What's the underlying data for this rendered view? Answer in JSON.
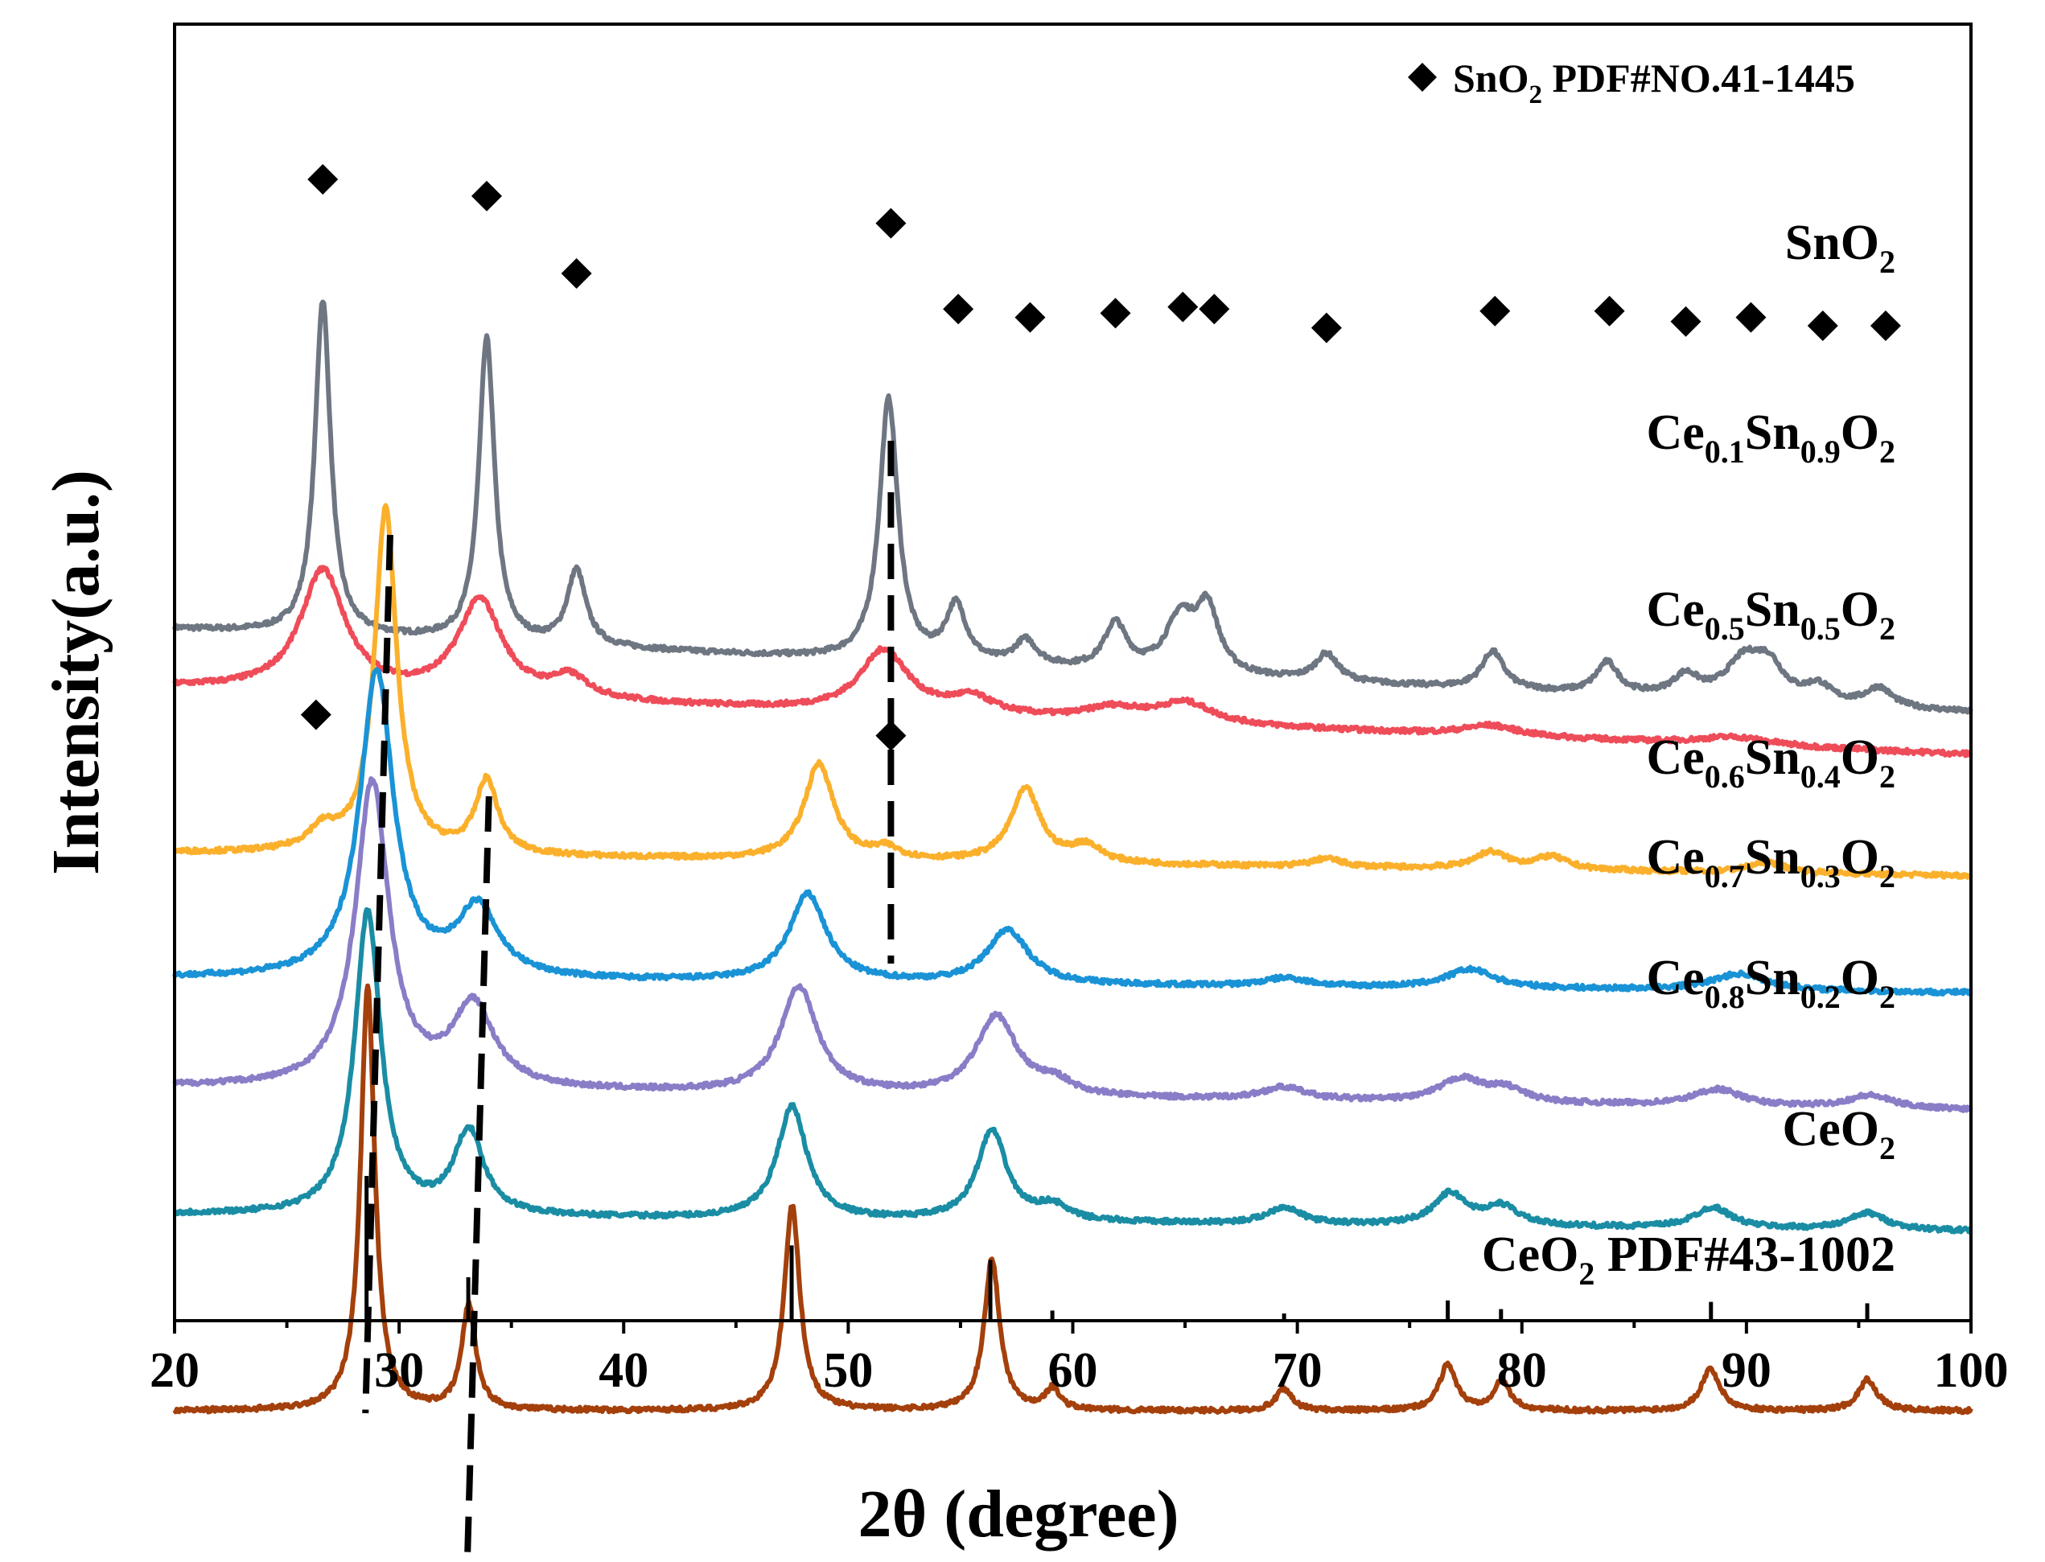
{
  "chart_data": {
    "type": "line",
    "title": "",
    "xlabel": "2θ (degree)",
    "ylabel": "Intensity(a.u.)",
    "xlim": [
      20,
      100
    ],
    "xticks": [
      20,
      30,
      40,
      50,
      60,
      70,
      80,
      90,
      100
    ],
    "grid": false,
    "legend": {
      "position": "top-right",
      "marker": "◆",
      "text_parts": [
        {
          "t": "SnO",
          "s": "normal"
        },
        {
          "t": "2",
          "s": "sub"
        },
        {
          "t": " PDF#NO.41-1445",
          "s": "normal"
        }
      ]
    },
    "series": [
      {
        "name": "SnO2",
        "label_parts": [
          {
            "t": "SnO",
            "s": "normal"
          },
          {
            "t": "2",
            "s": "sub"
          }
        ],
        "color": "#6e7682",
        "baseline": [
          8,
          4
        ],
        "peaks": [
          [
            26.6,
            16,
            0.42
          ],
          [
            33.9,
            14.5,
            0.42
          ],
          [
            37.9,
            3.6,
            0.5
          ],
          [
            51.8,
            12.5,
            0.5
          ],
          [
            54.8,
            2.7,
            0.55
          ],
          [
            57.9,
            1.2,
            0.6
          ],
          [
            61.9,
            2.2,
            0.6
          ],
          [
            64.8,
            2.6,
            0.8
          ],
          [
            66.0,
            3.0,
            0.6
          ],
          [
            71.3,
            1.3,
            0.6
          ],
          [
            78.7,
            1.8,
            0.6
          ],
          [
            83.8,
            1.5,
            0.6
          ],
          [
            87.3,
            1.0,
            0.7
          ],
          [
            89.9,
            1.8,
            1.0
          ],
          [
            91.0,
            1.5,
            0.8
          ],
          [
            93.2,
            0.8,
            0.7
          ],
          [
            95.9,
            0.9,
            0.7
          ]
        ]
      },
      {
        "name": "Ce0.1Sn0.9O2",
        "label_parts": [
          {
            "t": "Ce",
            "s": "normal"
          },
          {
            "t": "0.1",
            "s": "sub"
          },
          {
            "t": "Sn",
            "s": "normal"
          },
          {
            "t": "0.9",
            "s": "sub"
          },
          {
            "t": "O",
            "s": "normal"
          },
          {
            "t": "2",
            "s": "sub"
          }
        ],
        "color": "#ef4c59",
        "baseline": [
          5.2,
          2.0
        ],
        "peaks": [
          [
            26.6,
            5.8,
            1.2
          ],
          [
            33.6,
            4.6,
            1.2
          ],
          [
            37.6,
            1.0,
            1.0
          ],
          [
            51.6,
            3.0,
            1.3
          ],
          [
            55.5,
            0.8,
            1.2
          ],
          [
            61.8,
            0.6,
            1.5
          ],
          [
            65.0,
            1.0,
            1.5
          ],
          [
            78.6,
            0.5,
            1.5
          ],
          [
            89.5,
            0.4,
            2.0
          ]
        ]
      },
      {
        "name": "Ce0.5Sn0.5O2",
        "label_parts": [
          {
            "t": "Ce",
            "s": "normal"
          },
          {
            "t": "0.5",
            "s": "sub"
          },
          {
            "t": "Sn",
            "s": "normal"
          },
          {
            "t": "0.5",
            "s": "sub"
          },
          {
            "t": "O",
            "s": "normal"
          },
          {
            "t": "2",
            "s": "sub"
          }
        ],
        "color": "#fbb02c",
        "baseline": [
          -2.7,
          -3.8
        ],
        "peaks": [
          [
            29.4,
            16.5,
            0.6
          ],
          [
            33.9,
            3.5,
            0.6
          ],
          [
            26.6,
            1.0,
            0.8
          ],
          [
            48.7,
            4.6,
            0.8
          ],
          [
            51.7,
            0.5,
            0.7
          ],
          [
            57.9,
            3.5,
            0.8
          ],
          [
            60.6,
            0.8,
            0.8
          ],
          [
            71.3,
            0.4,
            0.8
          ],
          [
            78.6,
            0.8,
            0.9
          ],
          [
            81.3,
            0.6,
            0.9
          ],
          [
            90.9,
            0.5,
            1.0
          ]
        ]
      },
      {
        "name": "Ce0.6Sn0.4O2",
        "label_parts": [
          {
            "t": "Ce",
            "s": "normal"
          },
          {
            "t": "0.6",
            "s": "sub"
          },
          {
            "t": "Sn",
            "s": "normal"
          },
          {
            "t": "0.4",
            "s": "sub"
          },
          {
            "t": "O",
            "s": "normal"
          },
          {
            "t": "2",
            "s": "sub"
          }
        ],
        "color": "#1a93d6",
        "baseline": [
          -8.7,
          -9.4
        ],
        "peaks": [
          [
            29.0,
            14.7,
            0.9
          ],
          [
            33.5,
            3.3,
            1.1
          ],
          [
            48.2,
            4.2,
            1.0
          ],
          [
            57.1,
            2.6,
            1.1
          ],
          [
            69.5,
            0.4,
            1.2
          ],
          [
            77.7,
            0.9,
            1.3
          ],
          [
            89.7,
            0.8,
            1.5
          ]
        ]
      },
      {
        "name": "Ce0.7Sn0.3O2",
        "label_parts": [
          {
            "t": "Ce",
            "s": "normal"
          },
          {
            "t": "0.7",
            "s": "sub"
          },
          {
            "t": "Sn",
            "s": "normal"
          },
          {
            "t": "0.3",
            "s": "sub"
          },
          {
            "t": "O",
            "s": "normal"
          },
          {
            "t": "2",
            "s": "sub"
          }
        ],
        "color": "#8a7dc7",
        "baseline": [
          -13.9,
          -15.0
        ],
        "peaks": [
          [
            28.8,
            14.6,
            0.9
          ],
          [
            33.3,
            3.9,
            1.1
          ],
          [
            47.8,
            5.1,
            1.0
          ],
          [
            56.6,
            3.8,
            1.1
          ],
          [
            59.2,
            0.6,
            0.9
          ],
          [
            69.4,
            0.6,
            1.2
          ],
          [
            77.3,
            1.1,
            1.2
          ],
          [
            79.3,
            0.6,
            1.0
          ],
          [
            88.7,
            0.8,
            1.3
          ],
          [
            95.5,
            0.6,
            1.2
          ]
        ]
      },
      {
        "name": "Ce0.8Sn0.2O2",
        "label_parts": [
          {
            "t": "Ce",
            "s": "normal"
          },
          {
            "t": "0.8",
            "s": "sub"
          },
          {
            "t": "Sn",
            "s": "normal"
          },
          {
            "t": "0.2",
            "s": "sub"
          },
          {
            "t": "O",
            "s": "normal"
          },
          {
            "t": "2",
            "s": "sub"
          }
        ],
        "color": "#1a8da4",
        "baseline": [
          -20.0,
          -20.8
        ],
        "peaks": [
          [
            28.6,
            14.5,
            0.7
          ],
          [
            33.1,
            4.0,
            0.8
          ],
          [
            47.5,
            5.4,
            0.8
          ],
          [
            56.4,
            4.3,
            0.8
          ],
          [
            59.1,
            0.7,
            0.8
          ],
          [
            69.4,
            0.8,
            0.9
          ],
          [
            76.8,
            1.5,
            0.9
          ],
          [
            79.1,
            0.9,
            0.9
          ],
          [
            88.5,
            1.0,
            1.0
          ],
          [
            95.4,
            0.8,
            1.0
          ]
        ]
      },
      {
        "name": "CeO2",
        "label_parts": [
          {
            "t": "CeO",
            "s": "normal"
          },
          {
            "t": "2",
            "s": "sub"
          }
        ],
        "color": "#a4400c",
        "baseline": [
          -29.4,
          -29.4
        ],
        "peaks": [
          [
            28.6,
            20.3,
            0.38
          ],
          [
            33.1,
            5.0,
            0.38
          ],
          [
            47.5,
            9.8,
            0.42
          ],
          [
            56.4,
            7.2,
            0.42
          ],
          [
            59.1,
            1.0,
            0.4
          ],
          [
            69.4,
            1.0,
            0.45
          ],
          [
            76.7,
            2.2,
            0.45
          ],
          [
            79.1,
            1.4,
            0.45
          ],
          [
            88.4,
            2.0,
            0.5
          ],
          [
            95.4,
            1.5,
            0.5
          ]
        ]
      }
    ],
    "reference": {
      "name": "CeO2 PDF#43-1002",
      "label_parts": [
        {
          "t": "CeO",
          "s": "normal"
        },
        {
          "t": "2",
          "s": "sub"
        },
        {
          "t": " PDF#43-1002",
          "s": "normal"
        }
      ],
      "positions": [
        28.55,
        33.08,
        47.48,
        56.33,
        59.09,
        69.41,
        76.7,
        79.07,
        88.42,
        95.38
      ],
      "heights": [
        100,
        30,
        52,
        42,
        7,
        5,
        14,
        8,
        13,
        12
      ]
    },
    "markers": {
      "symbol": "◆",
      "points": [
        [
          26.6,
          29.5
        ],
        [
          33.9,
          28.7
        ],
        [
          37.9,
          25.0
        ],
        [
          51.9,
          27.4
        ],
        [
          54.9,
          23.3
        ],
        [
          58.1,
          22.9
        ],
        [
          61.9,
          23.1
        ],
        [
          64.9,
          23.4
        ],
        [
          66.3,
          23.3
        ],
        [
          71.3,
          22.4
        ],
        [
          78.8,
          23.2
        ],
        [
          83.9,
          23.2
        ],
        [
          87.3,
          22.7
        ],
        [
          90.2,
          22.9
        ],
        [
          93.4,
          22.5
        ],
        [
          96.2,
          22.5
        ],
        [
          26.3,
          3.9
        ],
        [
          51.9,
          2.9
        ]
      ]
    },
    "shift_guides": [
      {
        "x_top": 29.6,
        "x_bottom": 28.5,
        "y_top": 12.5,
        "y_bottom": -29.5
      },
      {
        "x_top": 34.0,
        "x_bottom": 33.0,
        "y_top": 0.0,
        "y_bottom": -38.0
      },
      {
        "x_top": 51.9,
        "x_bottom": 51.9,
        "y_top": 17.0,
        "y_bottom": -8.0
      }
    ]
  }
}
